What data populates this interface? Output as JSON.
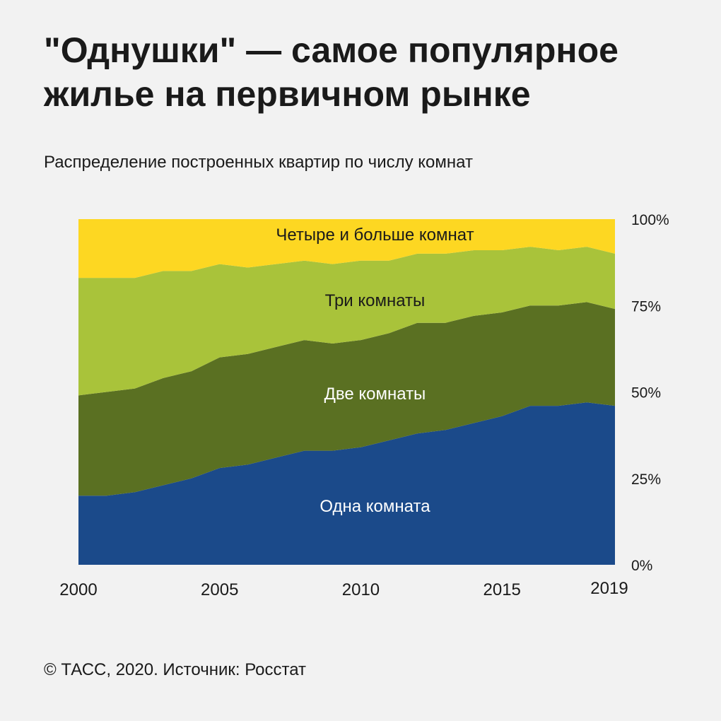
{
  "title_line1": "\"Однушки\" — самое популярное",
  "title_line2": "жилье на первичном рынке",
  "subtitle": "Распределение построенных квартир по числу комнат",
  "credit": "© ТАСС, 2020. Источник: Росстат",
  "chart_data": {
    "type": "area",
    "stacked": true,
    "x": [
      2000,
      2001,
      2002,
      2003,
      2004,
      2005,
      2006,
      2007,
      2008,
      2009,
      2010,
      2011,
      2012,
      2013,
      2014,
      2015,
      2016,
      2017,
      2018,
      2019
    ],
    "xticks": [
      "2000",
      "2005",
      "2010",
      "2015",
      "2019"
    ],
    "xtick_values": [
      2000,
      2005,
      2010,
      2015,
      2019
    ],
    "yticks": [
      "0%",
      "25%",
      "50%",
      "75%",
      "100%"
    ],
    "ytick_values": [
      0,
      25,
      50,
      75,
      100
    ],
    "ylim": [
      0,
      100
    ],
    "y_axis_side": "right",
    "series": [
      {
        "name": "Одна комната",
        "color": "#1b4a8a",
        "label_color": "#ffffff",
        "values": [
          20,
          20,
          21,
          23,
          25,
          28,
          29,
          31,
          33,
          33,
          34,
          36,
          38,
          39,
          41,
          43,
          46,
          46,
          47,
          46
        ]
      },
      {
        "name": "Две комнаты",
        "color": "#5a7022",
        "label_color": "#ffffff",
        "values": [
          29,
          30,
          30,
          31,
          31,
          32,
          32,
          32,
          32,
          31,
          31,
          31,
          32,
          31,
          31,
          30,
          29,
          29,
          29,
          28
        ]
      },
      {
        "name": "Три комнаты",
        "color": "#a9c33a",
        "label_color": "#1a1a1a",
        "values": [
          34,
          33,
          32,
          31,
          29,
          27,
          25,
          24,
          23,
          23,
          23,
          21,
          20,
          20,
          19,
          18,
          17,
          16,
          16,
          16
        ]
      },
      {
        "name": "Четыре и больше комнат",
        "color": "#fdd722",
        "label_color": "#1a1a1a",
        "values": [
          17,
          17,
          17,
          15,
          15,
          13,
          14,
          13,
          12,
          13,
          12,
          12,
          10,
          10,
          9,
          9,
          8,
          9,
          8,
          10
        ]
      }
    ]
  }
}
